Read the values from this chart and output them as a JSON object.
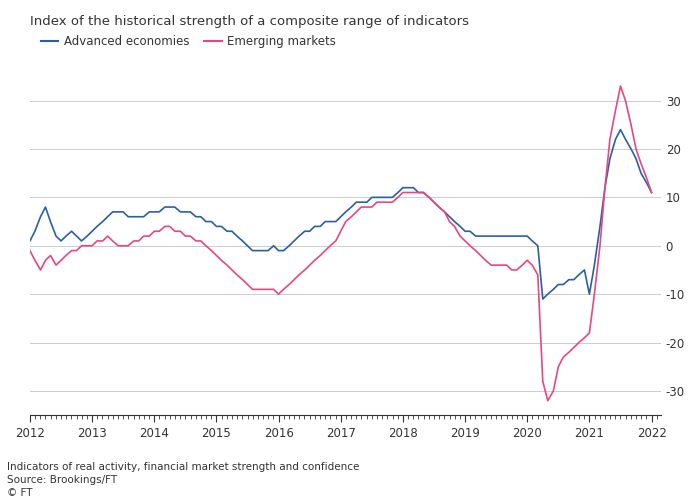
{
  "title": "Index of the historical strength of a composite range of indicators",
  "legend": [
    "Advanced economies",
    "Emerging markets"
  ],
  "legend_colors": [
    "#2a5fa5",
    "#e8487f"
  ],
  "footnote1": "Indicators of real activity, financial market strength and confidence",
  "footnote2": "Source: Brookings/FT",
  "footnote3": "© FT",
  "ylim": [
    -35,
    37
  ],
  "yticks": [
    -30,
    -20,
    -10,
    0,
    10,
    20,
    30
  ],
  "background_color": "#ffffff",
  "text_color": "#333333",
  "grid_color": "#cccccc",
  "advanced_x": [
    2012.0,
    2012.08,
    2012.17,
    2012.25,
    2012.33,
    2012.42,
    2012.5,
    2012.58,
    2012.67,
    2012.75,
    2012.83,
    2012.92,
    2013.0,
    2013.08,
    2013.17,
    2013.25,
    2013.33,
    2013.42,
    2013.5,
    2013.58,
    2013.67,
    2013.75,
    2013.83,
    2013.92,
    2014.0,
    2014.08,
    2014.17,
    2014.25,
    2014.33,
    2014.42,
    2014.5,
    2014.58,
    2014.67,
    2014.75,
    2014.83,
    2014.92,
    2015.0,
    2015.08,
    2015.17,
    2015.25,
    2015.33,
    2015.42,
    2015.5,
    2015.58,
    2015.67,
    2015.75,
    2015.83,
    2015.92,
    2016.0,
    2016.08,
    2016.17,
    2016.25,
    2016.33,
    2016.42,
    2016.5,
    2016.58,
    2016.67,
    2016.75,
    2016.83,
    2016.92,
    2017.0,
    2017.08,
    2017.17,
    2017.25,
    2017.33,
    2017.42,
    2017.5,
    2017.58,
    2017.67,
    2017.75,
    2017.83,
    2017.92,
    2018.0,
    2018.08,
    2018.17,
    2018.25,
    2018.33,
    2018.42,
    2018.5,
    2018.58,
    2018.67,
    2018.75,
    2018.83,
    2018.92,
    2019.0,
    2019.08,
    2019.17,
    2019.25,
    2019.33,
    2019.42,
    2019.5,
    2019.58,
    2019.67,
    2019.75,
    2019.83,
    2019.92,
    2020.0,
    2020.08,
    2020.17,
    2020.25,
    2020.33,
    2020.42,
    2020.5,
    2020.58,
    2020.67,
    2020.75,
    2020.83,
    2020.92,
    2021.0,
    2021.08,
    2021.17,
    2021.25,
    2021.33,
    2021.42,
    2021.5,
    2021.58,
    2021.67,
    2021.75,
    2021.83,
    2021.92,
    2022.0
  ],
  "advanced_y": [
    1,
    3,
    6,
    8,
    5,
    2,
    1,
    2,
    3,
    2,
    1,
    2,
    3,
    4,
    5,
    6,
    7,
    7,
    7,
    6,
    6,
    6,
    6,
    7,
    7,
    7,
    8,
    8,
    8,
    7,
    7,
    7,
    6,
    6,
    5,
    5,
    4,
    4,
    3,
    3,
    2,
    1,
    0,
    -1,
    -1,
    -1,
    -1,
    0,
    -1,
    -1,
    0,
    1,
    2,
    3,
    3,
    4,
    4,
    5,
    5,
    5,
    6,
    7,
    8,
    9,
    9,
    9,
    10,
    10,
    10,
    10,
    10,
    11,
    12,
    12,
    12,
    11,
    11,
    10,
    9,
    8,
    7,
    6,
    5,
    4,
    3,
    3,
    2,
    2,
    2,
    2,
    2,
    2,
    2,
    2,
    2,
    2,
    2,
    1,
    0,
    -11,
    -10,
    -9,
    -8,
    -8,
    -7,
    -7,
    -6,
    -5,
    -10,
    -4,
    4,
    12,
    18,
    22,
    24,
    22,
    20,
    18,
    15,
    13,
    11
  ],
  "emerging_x": [
    2012.0,
    2012.08,
    2012.17,
    2012.25,
    2012.33,
    2012.42,
    2012.5,
    2012.58,
    2012.67,
    2012.75,
    2012.83,
    2012.92,
    2013.0,
    2013.08,
    2013.17,
    2013.25,
    2013.33,
    2013.42,
    2013.5,
    2013.58,
    2013.67,
    2013.75,
    2013.83,
    2013.92,
    2014.0,
    2014.08,
    2014.17,
    2014.25,
    2014.33,
    2014.42,
    2014.5,
    2014.58,
    2014.67,
    2014.75,
    2014.83,
    2014.92,
    2015.0,
    2015.08,
    2015.17,
    2015.25,
    2015.33,
    2015.42,
    2015.5,
    2015.58,
    2015.67,
    2015.75,
    2015.83,
    2015.92,
    2016.0,
    2016.08,
    2016.17,
    2016.25,
    2016.33,
    2016.42,
    2016.5,
    2016.58,
    2016.67,
    2016.75,
    2016.83,
    2016.92,
    2017.0,
    2017.08,
    2017.17,
    2017.25,
    2017.33,
    2017.42,
    2017.5,
    2017.58,
    2017.67,
    2017.75,
    2017.83,
    2017.92,
    2018.0,
    2018.08,
    2018.17,
    2018.25,
    2018.33,
    2018.42,
    2018.5,
    2018.58,
    2018.67,
    2018.75,
    2018.83,
    2018.92,
    2019.0,
    2019.08,
    2019.17,
    2019.25,
    2019.33,
    2019.42,
    2019.5,
    2019.58,
    2019.67,
    2019.75,
    2019.83,
    2019.92,
    2020.0,
    2020.08,
    2020.17,
    2020.25,
    2020.33,
    2020.42,
    2020.5,
    2020.58,
    2020.67,
    2020.75,
    2020.83,
    2020.92,
    2021.0,
    2021.08,
    2021.17,
    2021.25,
    2021.33,
    2021.42,
    2021.5,
    2021.58,
    2021.67,
    2021.75,
    2021.83,
    2021.92,
    2022.0
  ],
  "emerging_y": [
    -1,
    -3,
    -5,
    -3,
    -2,
    -4,
    -3,
    -2,
    -1,
    -1,
    0,
    0,
    0,
    1,
    1,
    2,
    1,
    0,
    0,
    0,
    1,
    1,
    2,
    2,
    3,
    3,
    4,
    4,
    3,
    3,
    2,
    2,
    1,
    1,
    0,
    -1,
    -2,
    -3,
    -4,
    -5,
    -6,
    -7,
    -8,
    -9,
    -9,
    -9,
    -9,
    -9,
    -10,
    -9,
    -8,
    -7,
    -6,
    -5,
    -4,
    -3,
    -2,
    -1,
    0,
    1,
    3,
    5,
    6,
    7,
    8,
    8,
    8,
    9,
    9,
    9,
    9,
    10,
    11,
    11,
    11,
    11,
    11,
    10,
    9,
    8,
    7,
    5,
    4,
    2,
    1,
    0,
    -1,
    -2,
    -3,
    -4,
    -4,
    -4,
    -4,
    -5,
    -5,
    -4,
    -3,
    -4,
    -6,
    -28,
    -32,
    -30,
    -25,
    -23,
    -22,
    -21,
    -20,
    -19,
    -18,
    -10,
    0,
    12,
    22,
    28,
    33,
    30,
    25,
    20,
    17,
    14,
    11
  ]
}
